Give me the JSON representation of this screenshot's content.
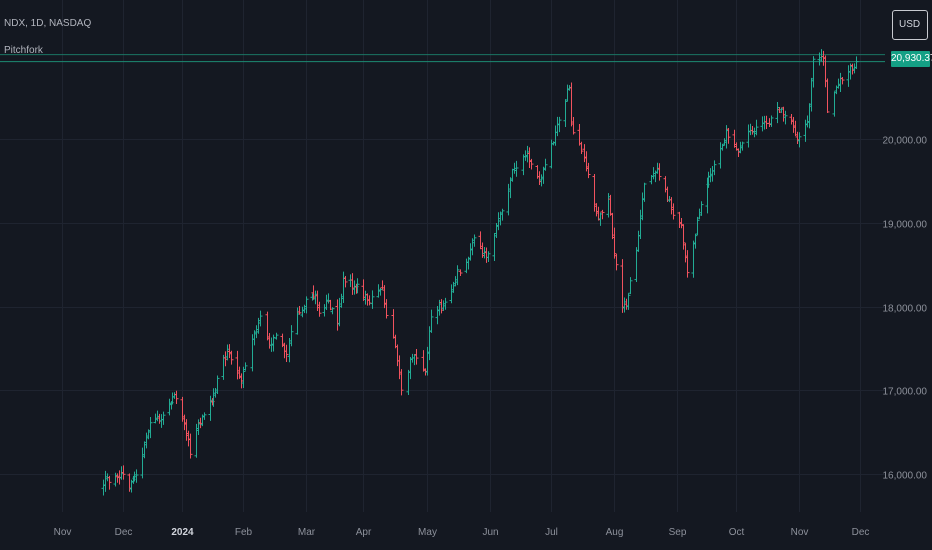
{
  "header": {
    "symbol": "NDX, 1D, NASDAQ",
    "indicator": "Pitchfork"
  },
  "currency": "USD",
  "last_price_label": "20,930.37",
  "colors": {
    "background": "#141821",
    "grid": "#1f2430",
    "up": "#22ab94",
    "down": "#f0525e",
    "axis_text": "#8d919b",
    "level_line": "#1c8a73",
    "price_tag": "#14a085"
  },
  "chart_data": {
    "type": "ohlc",
    "symbol": "NDX",
    "interval": "1D",
    "exchange": "NASDAQ",
    "title": "NDX, 1D, NASDAQ",
    "ylim": [
      15650,
      21150
    ],
    "last_price": 20930.37,
    "y_ticks": [
      {
        "value": 16000,
        "label": "16,000.00"
      },
      {
        "value": 17000,
        "label": "17,000.00"
      },
      {
        "value": 18000,
        "label": "18,000.00"
      },
      {
        "value": 19000,
        "label": "19,000.00"
      },
      {
        "value": 20000,
        "label": "20,000.00"
      }
    ],
    "x_ticks": [
      {
        "date": "2023-11-01",
        "label": "Nov",
        "bold": false
      },
      {
        "date": "2023-12-01",
        "label": "Dec",
        "bold": false
      },
      {
        "date": "2024-01-01",
        "label": "2024",
        "bold": true
      },
      {
        "date": "2024-02-01",
        "label": "Feb",
        "bold": false
      },
      {
        "date": "2024-03-01",
        "label": "Mar",
        "bold": false
      },
      {
        "date": "2024-04-01",
        "label": "Apr",
        "bold": false
      },
      {
        "date": "2024-05-01",
        "label": "May",
        "bold": false
      },
      {
        "date": "2024-06-01",
        "label": "Jun",
        "bold": false
      },
      {
        "date": "2024-07-01",
        "label": "Jul",
        "bold": false
      },
      {
        "date": "2024-08-01",
        "label": "Aug",
        "bold": false
      },
      {
        "date": "2024-09-01",
        "label": "Sep",
        "bold": false
      },
      {
        "date": "2024-10-01",
        "label": "Oct",
        "bold": false
      },
      {
        "date": "2024-11-01",
        "label": "Nov",
        "bold": false
      },
      {
        "date": "2024-12-01",
        "label": "Dec",
        "bold": false
      }
    ],
    "date_range": [
      "2023-11-01",
      "2024-12-06"
    ],
    "anchors": [
      [
        "2023-11-21",
        15920
      ],
      [
        "2023-11-28",
        15990
      ],
      [
        "2023-12-01",
        16020
      ],
      [
        "2023-12-04",
        15860
      ],
      [
        "2023-12-08",
        16000
      ],
      [
        "2023-12-14",
        16550
      ],
      [
        "2023-12-20",
        16650
      ],
      [
        "2023-12-28",
        16900
      ],
      [
        "2024-01-02",
        16650
      ],
      [
        "2024-01-05",
        16280
      ],
      [
        "2024-01-10",
        16650
      ],
      [
        "2024-01-16",
        16850
      ],
      [
        "2024-01-24",
        17500
      ],
      [
        "2024-01-31",
        17150
      ],
      [
        "2024-02-09",
        17900
      ],
      [
        "2024-02-13",
        17550
      ],
      [
        "2024-02-16",
        17700
      ],
      [
        "2024-02-21",
        17450
      ],
      [
        "2024-02-26",
        17950
      ],
      [
        "2024-03-06",
        18150
      ],
      [
        "2024-03-08",
        17900
      ],
      [
        "2024-03-13",
        18050
      ],
      [
        "2024-03-18",
        17820
      ],
      [
        "2024-03-21",
        18300
      ],
      [
        "2024-03-28",
        18250
      ],
      [
        "2024-04-04",
        18050
      ],
      [
        "2024-04-10",
        18200
      ],
      [
        "2024-04-12",
        17900
      ],
      [
        "2024-04-17",
        17400
      ],
      [
        "2024-04-19",
        17050
      ],
      [
        "2024-04-25",
        17450
      ],
      [
        "2024-04-30",
        17200
      ],
      [
        "2024-05-03",
        17900
      ],
      [
        "2024-05-10",
        18050
      ],
      [
        "2024-05-15",
        18350
      ],
      [
        "2024-05-22",
        18650
      ],
      [
        "2024-05-24",
        18850
      ],
      [
        "2024-05-30",
        18550
      ],
      [
        "2024-06-06",
        19100
      ],
      [
        "2024-06-12",
        19600
      ],
      [
        "2024-06-18",
        19850
      ],
      [
        "2024-06-24",
        19500
      ],
      [
        "2024-06-28",
        19680
      ],
      [
        "2024-07-05",
        20200
      ],
      [
        "2024-07-10",
        20650
      ],
      [
        "2024-07-11",
        20200
      ],
      [
        "2024-07-17",
        19750
      ],
      [
        "2024-07-24",
        19050
      ],
      [
        "2024-07-29",
        19300
      ],
      [
        "2024-08-02",
        18450
      ],
      [
        "2024-08-05",
        17950
      ],
      [
        "2024-08-07",
        18050
      ],
      [
        "2024-08-12",
        18700
      ],
      [
        "2024-08-16",
        19450
      ],
      [
        "2024-08-22",
        19650
      ],
      [
        "2024-08-29",
        19150
      ],
      [
        "2024-09-03",
        18950
      ],
      [
        "2024-09-06",
        18450
      ],
      [
        "2024-09-11",
        19000
      ],
      [
        "2024-09-16",
        19450
      ],
      [
        "2024-09-20",
        19650
      ],
      [
        "2024-09-26",
        20050
      ],
      [
        "2024-10-02",
        19880
      ],
      [
        "2024-10-08",
        20100
      ],
      [
        "2024-10-15",
        20150
      ],
      [
        "2024-10-21",
        20350
      ],
      [
        "2024-10-28",
        20250
      ],
      [
        "2024-10-31",
        19950
      ],
      [
        "2024-11-05",
        20200
      ],
      [
        "2024-11-08",
        21000
      ],
      [
        "2024-11-13",
        20950
      ],
      [
        "2024-11-15",
        20350
      ],
      [
        "2024-11-20",
        20650
      ],
      [
        "2024-11-25",
        20800
      ],
      [
        "2024-11-29",
        20930
      ]
    ]
  }
}
